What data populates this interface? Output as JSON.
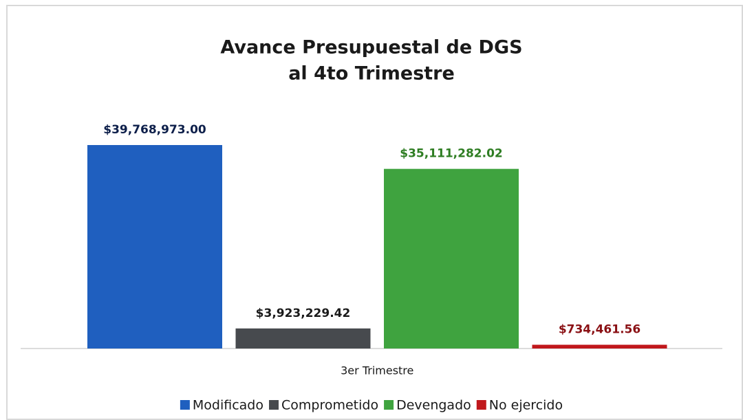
{
  "chart_data": {
    "type": "bar",
    "title": [
      "Avance Presupuestal de DGS",
      "al 4to Trimestre"
    ],
    "categories": [
      "3er Trimestre"
    ],
    "series": [
      {
        "name": "Modificado",
        "color": "#1f5fbf",
        "label_color": "#0d1f4a",
        "values": [
          39768973.0
        ],
        "value_labels": [
          "$39,768,973.00"
        ]
      },
      {
        "name": "Comprometido",
        "color": "#474a4e",
        "label_color": "#1a1a1a",
        "values": [
          3923229.42
        ],
        "value_labels": [
          "$3,923,229.42"
        ]
      },
      {
        "name": "Devengado",
        "color": "#3fa33f",
        "label_color": "#2e7d22",
        "values": [
          35111282.02
        ],
        "value_labels": [
          "$35,111,282.02"
        ]
      },
      {
        "name": "No ejercido",
        "color": "#c0181c",
        "label_color": "#8a1014",
        "values": [
          734461.56
        ],
        "value_labels": [
          "$734,461.56"
        ]
      }
    ]
  }
}
